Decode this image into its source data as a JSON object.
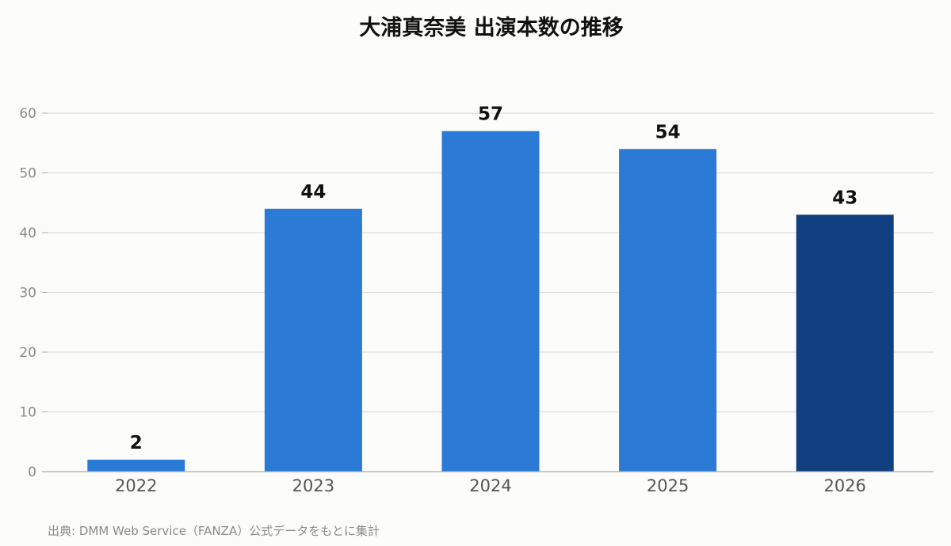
{
  "chart_data": {
    "type": "bar",
    "title": "大浦真奈美 出演本数の推移",
    "xlabel": "",
    "ylabel": "",
    "categories": [
      "2022",
      "2023",
      "2024",
      "2025",
      "2026"
    ],
    "values": [
      2,
      44,
      57,
      54,
      43
    ],
    "ylim": [
      0,
      60
    ],
    "yticks": [
      0,
      10,
      20,
      30,
      40,
      50,
      60
    ],
    "grid": true,
    "legend": "none",
    "colors": {
      "bar": "#2b7ad6",
      "highlight": "#10407f",
      "grid": "#dddddd",
      "axis": "#aaaaaa"
    },
    "highlight_index": 4
  },
  "source_note": "出典: DMM Web Service（FANZA）公式データをもとに集計"
}
